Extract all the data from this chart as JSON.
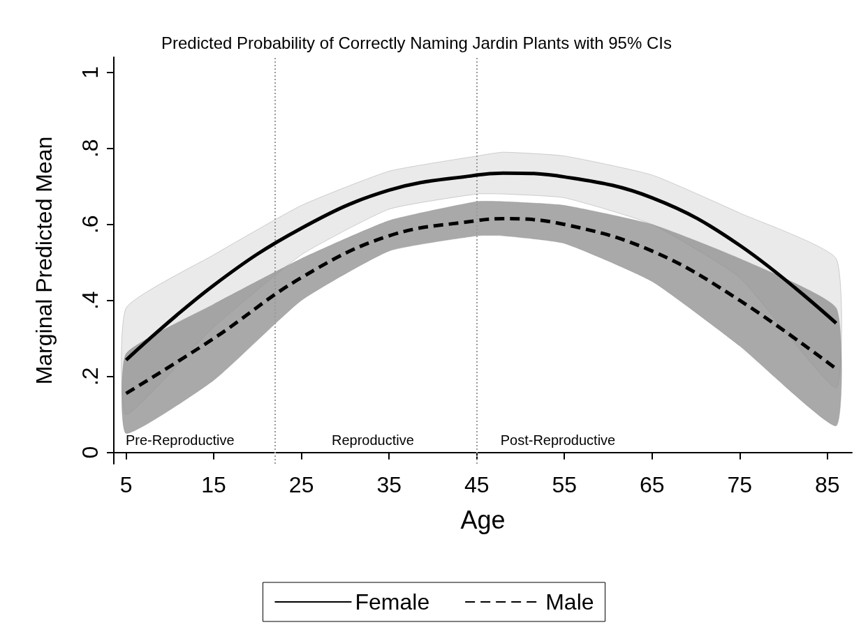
{
  "chart_data": {
    "type": "line",
    "title": "Predicted Probability of Correctly Naming Jardin Plants with 95% CIs",
    "xlabel": "Age",
    "ylabel": "Marginal Predicted Mean",
    "x": [
      5,
      15,
      25,
      35,
      45,
      48,
      55,
      65,
      75,
      86
    ],
    "series": [
      {
        "name": "Female",
        "color": "#000000",
        "line_style": "solid",
        "values": [
          0.243,
          0.44,
          0.59,
          0.69,
          0.73,
          0.735,
          0.725,
          0.67,
          0.545,
          0.34
        ],
        "lower": [
          0.1,
          0.33,
          0.52,
          0.64,
          0.68,
          0.68,
          0.67,
          0.6,
          0.46,
          0.17
        ],
        "upper": [
          0.38,
          0.52,
          0.65,
          0.74,
          0.78,
          0.79,
          0.78,
          0.73,
          0.63,
          0.51
        ]
      },
      {
        "name": "Male",
        "color": "#000000",
        "line_style": "dashed",
        "values": [
          0.155,
          0.3,
          0.46,
          0.57,
          0.61,
          0.615,
          0.6,
          0.53,
          0.4,
          0.22
        ],
        "lower": [
          0.05,
          0.19,
          0.4,
          0.53,
          0.57,
          0.57,
          0.55,
          0.45,
          0.28,
          0.07
        ],
        "upper": [
          0.26,
          0.39,
          0.51,
          0.61,
          0.66,
          0.66,
          0.65,
          0.6,
          0.51,
          0.38
        ]
      }
    ],
    "xlim": [
      3.6,
      87.8
    ],
    "xticks": [
      5,
      15,
      25,
      35,
      45,
      55,
      65,
      75,
      85
    ],
    "ylim": [
      -0.03,
      1.04
    ],
    "yticks": [
      0,
      {
        "value": 0.2,
        "label": ".2"
      },
      {
        "value": 0.4,
        "label": ".4"
      },
      {
        "value": 0.6,
        "label": ".6"
      },
      {
        "value": 0.8,
        "label": ".8"
      },
      1
    ],
    "ref_lines": [
      {
        "axis": "x",
        "value": 22,
        "label": null,
        "color": "#999999",
        "line_style": "dotted"
      },
      {
        "axis": "x",
        "value": 45,
        "label": null,
        "color": "#999999",
        "line_style": "dotted"
      }
    ],
    "annotations": [
      "Pre-Reproductive",
      "Reproductive",
      "Post-Reproductive"
    ],
    "marker": "none",
    "grid": false,
    "legend": "bottom"
  }
}
